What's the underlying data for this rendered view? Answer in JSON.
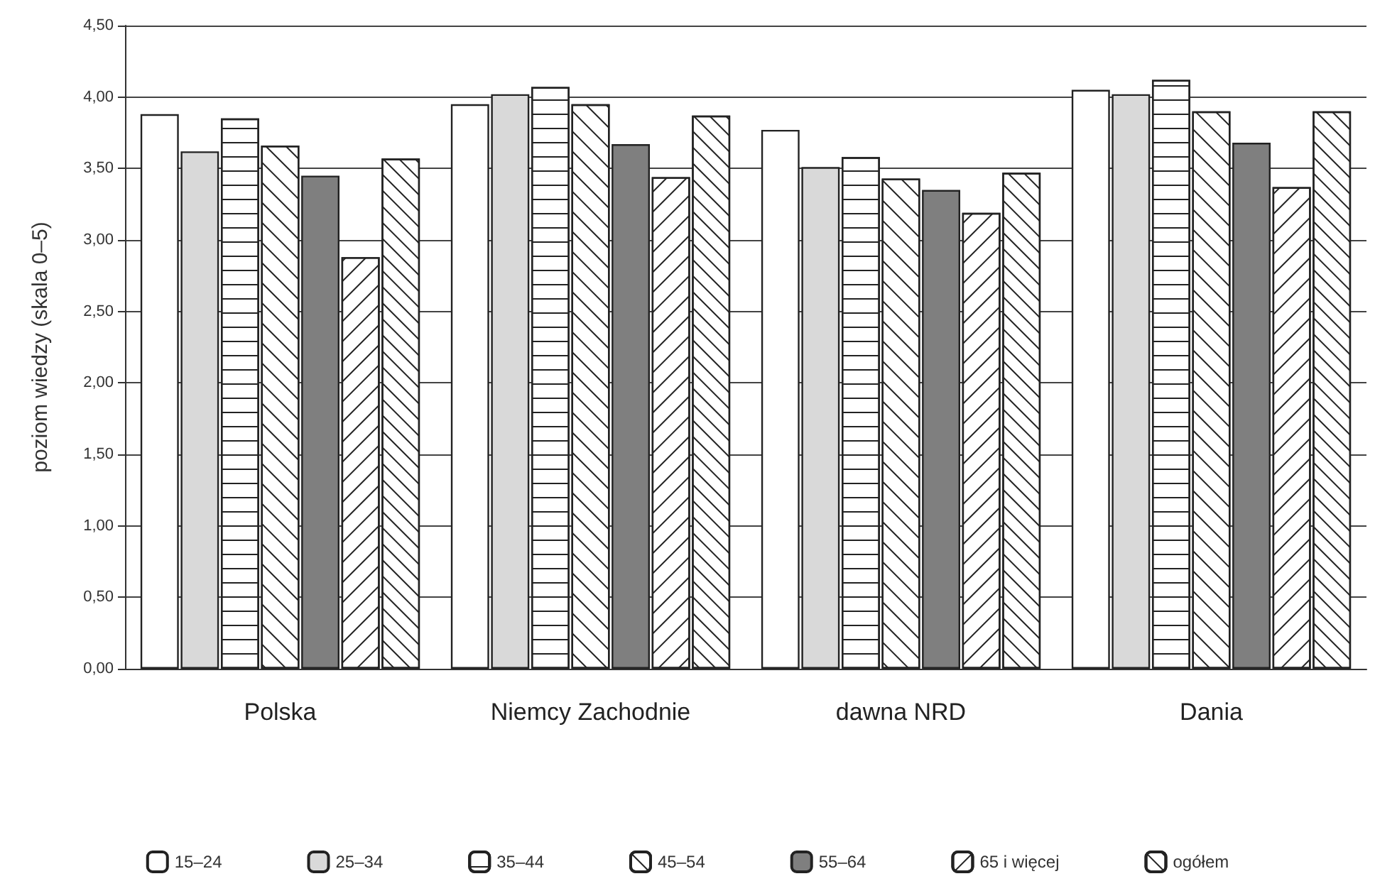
{
  "chart_data": {
    "type": "bar",
    "ylabel": "poziom wiedzy (skala 0–5)",
    "categories": [
      "Polska",
      "Niemcy Zachodnie",
      "dawna NRD",
      "Dania"
    ],
    "series": [
      {
        "name": "15–24",
        "color": "#ffffff",
        "values": [
          3.88,
          3.95,
          3.77,
          4.05
        ]
      },
      {
        "name": "25–34",
        "color": "#d9d9d9",
        "values": [
          3.62,
          4.02,
          3.51,
          4.02
        ]
      },
      {
        "name": "35–44",
        "color": "#ffffff",
        "values": [
          3.85,
          4.07,
          3.58,
          4.12
        ]
      },
      {
        "name": "45–54",
        "color": "#ffffff",
        "values": [
          3.66,
          3.95,
          3.43,
          3.9
        ]
      },
      {
        "name": "55–64",
        "color": "#7f7f7f",
        "values": [
          3.45,
          3.67,
          3.35,
          3.68
        ]
      },
      {
        "name": "65 i więcej",
        "color": "#ffffff",
        "values": [
          2.88,
          3.44,
          3.19,
          3.37
        ]
      },
      {
        "name": "ogółem",
        "color": "#ffffff",
        "values": [
          3.57,
          3.87,
          3.47,
          3.9
        ]
      }
    ],
    "ylim": [
      0,
      4.5
    ],
    "yticks": [
      {
        "value": 0,
        "label": "0,00"
      },
      {
        "value": 0.5,
        "label": "0,50"
      },
      {
        "value": 1,
        "label": "1,00"
      },
      {
        "value": 1.5,
        "label": "1,50"
      },
      {
        "value": 2,
        "label": "2,00"
      },
      {
        "value": 2.5,
        "label": "2,50"
      },
      {
        "value": 3,
        "label": "3,00"
      },
      {
        "value": 3.5,
        "label": "3,50"
      },
      {
        "value": 4,
        "label": "4,00"
      },
      {
        "value": 4.5,
        "label": "4,50"
      }
    ],
    "grid": "y",
    "legend": "bottom"
  }
}
